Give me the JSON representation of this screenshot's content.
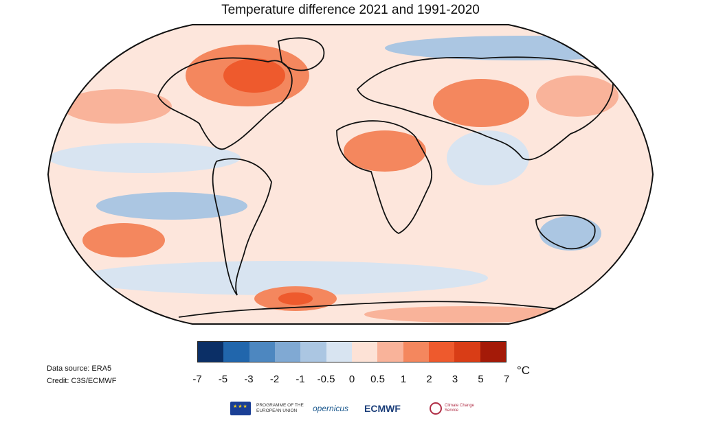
{
  "title": "Temperature difference 2021 and 1991-2020",
  "colorbar": {
    "colors": [
      "#0b2f66",
      "#2166ac",
      "#4d87c0",
      "#80a9d3",
      "#abc6e2",
      "#d8e4f1",
      "#fde2d6",
      "#f9b39a",
      "#f4875e",
      "#ee5a2d",
      "#d93d16",
      "#a41a08"
    ],
    "ticks": [
      "-7",
      "-5",
      "-3",
      "-2",
      "-1",
      "-0.5",
      "0",
      "0.5",
      "1",
      "2",
      "3",
      "5",
      "7"
    ],
    "unit": "°C"
  },
  "source": {
    "data_source": "Data source: ERA5",
    "credit": "Credit: C3S/ECMWF"
  },
  "logos": {
    "eu": "PROGRAMME OF THE EUROPEAN UNION",
    "copernicus": "opernicus",
    "ecmwf": "ECMWF",
    "c3s": "Climate Change Service"
  }
}
